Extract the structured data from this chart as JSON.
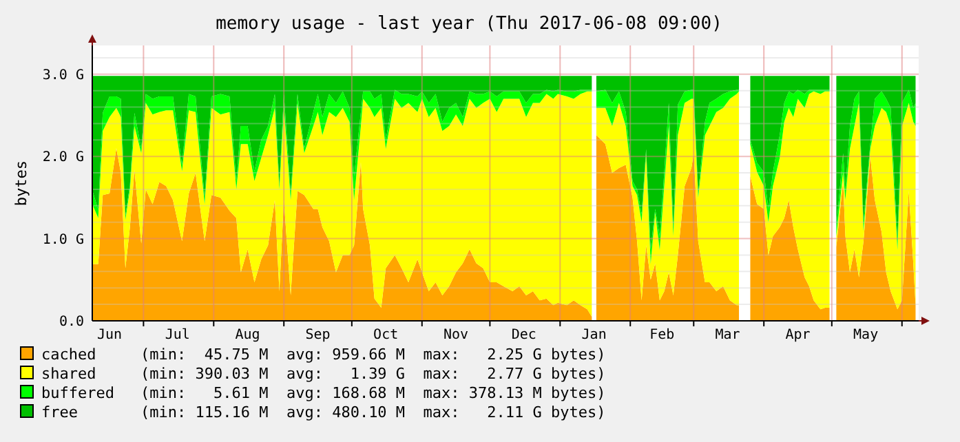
{
  "chart_data": {
    "type": "area",
    "stacked": true,
    "title": "memory usage - last year (Thu 2017-06-08 09:00)",
    "ylabel": "bytes",
    "x": [
      "2016-06-08T09:00",
      "2016-06-11",
      "2016-06-13",
      "2016-06-16",
      "2016-06-19",
      "2016-06-21",
      "2016-06-23",
      "2016-06-25",
      "2016-06-27",
      "2016-06-30",
      "2016-07-02",
      "2016-07-05",
      "2016-07-08",
      "2016-07-11",
      "2016-07-14",
      "2016-07-18",
      "2016-07-21",
      "2016-07-24",
      "2016-07-28",
      "2016-07-31",
      "2016-08-04",
      "2016-08-08",
      "2016-08-11",
      "2016-08-13",
      "2016-08-16",
      "2016-08-19",
      "2016-08-22",
      "2016-08-25",
      "2016-08-28",
      "2016-08-30",
      "2016-09-01",
      "2016-09-04",
      "2016-09-07",
      "2016-09-10",
      "2016-09-14",
      "2016-09-16",
      "2016-09-18",
      "2016-09-21",
      "2016-09-24",
      "2016-09-27",
      "2016-09-30",
      "2016-10-02",
      "2016-10-05",
      "2016-10-06",
      "2016-10-09",
      "2016-10-11",
      "2016-10-14",
      "2016-10-16",
      "2016-10-20",
      "2016-10-23",
      "2016-10-26",
      "2016-10-30",
      "2016-11-01",
      "2016-11-04",
      "2016-11-07",
      "2016-11-10",
      "2016-11-13",
      "2016-11-16",
      "2016-11-19",
      "2016-11-22",
      "2016-11-25",
      "2016-11-28",
      "2016-12-01",
      "2016-12-04",
      "2016-12-07",
      "2016-12-11",
      "2016-12-14",
      "2016-12-17",
      "2016-12-20",
      "2016-12-23",
      "2016-12-26",
      "2016-12-29",
      "2016-12-31",
      "2017-01-04",
      "2017-01-07",
      "2017-01-10",
      "2017-01-13",
      "2017-01-15",
      "2017-01-16",
      "2017-01-17",
      "2017-01-21",
      "2017-01-24",
      "2017-01-27",
      "2017-01-30",
      "2017-02-02",
      "2017-02-04",
      "2017-02-06",
      "2017-02-08",
      "2017-02-10",
      "2017-02-12",
      "2017-02-14",
      "2017-02-16",
      "2017-02-18",
      "2017-02-20",
      "2017-02-22",
      "2017-02-25",
      "2017-02-28",
      "2017-03-01",
      "2017-03-03",
      "2017-03-06",
      "2017-03-08",
      "2017-03-11",
      "2017-03-14",
      "2017-03-17",
      "2017-03-20",
      "2017-03-21",
      "2017-03-22",
      "2017-03-26",
      "2017-03-29",
      "2017-04-01",
      "2017-04-03",
      "2017-04-05",
      "2017-04-08",
      "2017-04-10",
      "2017-04-12",
      "2017-04-14",
      "2017-04-16",
      "2017-04-19",
      "2017-04-21",
      "2017-04-23",
      "2017-04-26",
      "2017-04-28",
      "2017-04-30",
      "2017-05-01",
      "2017-05-03",
      "2017-05-06",
      "2017-05-07",
      "2017-05-09",
      "2017-05-11",
      "2017-05-13",
      "2017-05-15",
      "2017-05-18",
      "2017-05-20",
      "2017-05-23",
      "2017-05-25",
      "2017-05-27",
      "2017-05-30",
      "2017-06-01",
      "2017-06-04",
      "2017-06-06",
      "2017-06-07"
    ],
    "series": [
      {
        "name": "cached",
        "color": "#ffa500",
        "values": [
          0.69,
          0.69,
          1.53,
          1.55,
          2.1,
          1.8,
          0.64,
          1.14,
          1.84,
          0.94,
          1.6,
          1.42,
          1.69,
          1.64,
          1.47,
          0.97,
          1.55,
          1.8,
          0.97,
          1.53,
          1.5,
          1.34,
          1.25,
          0.59,
          0.87,
          0.47,
          0.75,
          0.92,
          1.47,
          0.36,
          1.47,
          0.31,
          1.58,
          1.53,
          1.36,
          1.36,
          1.14,
          0.97,
          0.59,
          0.8,
          0.8,
          0.92,
          1.93,
          1.36,
          0.92,
          0.27,
          0.16,
          0.64,
          0.8,
          0.64,
          0.47,
          0.75,
          0.59,
          0.36,
          0.47,
          0.31,
          0.42,
          0.59,
          0.7,
          0.87,
          0.7,
          0.64,
          0.47,
          0.47,
          0.42,
          0.36,
          0.42,
          0.31,
          0.36,
          0.25,
          0.27,
          0.19,
          0.22,
          0.19,
          0.25,
          0.19,
          0.14,
          0.05,
          null,
          2.26,
          2.15,
          1.8,
          1.86,
          1.9,
          1.5,
          0.97,
          0.25,
          0.92,
          0.5,
          0.7,
          0.25,
          0.36,
          0.59,
          0.31,
          0.8,
          1.64,
          1.86,
          2.04,
          0.97,
          0.47,
          0.47,
          0.36,
          0.42,
          0.25,
          0.19,
          0.19,
          null,
          1.76,
          1.42,
          1.36,
          0.8,
          1.03,
          1.14,
          1.25,
          1.47,
          1.14,
          0.87,
          0.53,
          0.42,
          0.25,
          0.14,
          0.16,
          0.16,
          null,
          0.9,
          1.7,
          1.03,
          0.59,
          0.87,
          0.53,
          0.97,
          2.0,
          1.47,
          1.08,
          0.59,
          0.36,
          0.14,
          0.25,
          1.58,
          0.7,
          0.19
        ]
      },
      {
        "name": "shared",
        "color": "#ffff00",
        "values": [
          0.73,
          0.56,
          0.78,
          0.93,
          0.49,
          0.68,
          0.59,
          0.46,
          0.53,
          1.1,
          1.05,
          1.09,
          0.85,
          0.92,
          1.09,
          0.85,
          1.01,
          0.74,
          0.45,
          1.06,
          1.01,
          1.2,
          0.35,
          1.56,
          1.28,
          1.23,
          1.23,
          1.34,
          1.12,
          1.24,
          1.12,
          1.16,
          1.07,
          0.51,
          1.01,
          1.18,
          1.12,
          1.57,
          1.89,
          1.79,
          1.62,
          0.55,
          0.44,
          1.34,
          1.67,
          2.21,
          2.43,
          1.45,
          1.9,
          1.95,
          2.18,
          1.79,
          2.11,
          2.12,
          2.12,
          2.0,
          1.95,
          1.92,
          1.67,
          1.83,
          1.89,
          2.01,
          2.23,
          2.07,
          2.28,
          2.34,
          2.28,
          2.17,
          2.29,
          2.4,
          2.49,
          2.51,
          2.54,
          2.54,
          2.45,
          2.57,
          2.65,
          2.74,
          null,
          0.33,
          0.44,
          0.57,
          0.79,
          0.47,
          0.14,
          0.56,
          0.95,
          1.11,
          0.19,
          0.61,
          0.61,
          1.28,
          1.78,
          0.72,
          1.46,
          1.01,
          0.84,
          0.66,
          0.53,
          1.79,
          1.9,
          2.18,
          2.17,
          2.45,
          2.57,
          2.6,
          null,
          0.39,
          0.39,
          0.28,
          0.4,
          0.61,
          0.84,
          1.17,
          1.12,
          1.34,
          1.83,
          2.06,
          2.34,
          2.54,
          2.62,
          2.63,
          2.63,
          null,
          0.13,
          0.11,
          0.44,
          1.5,
          1.5,
          2.12,
          0.12,
          0.09,
          0.9,
          1.51,
          1.95,
          2.01,
          0.72,
          2.12,
          1.07,
          1.72,
          2.18
        ]
      },
      {
        "name": "buffered",
        "color": "#00ff00",
        "values": [
          0.17,
          0.1,
          0.22,
          0.25,
          0.14,
          0.22,
          0.05,
          0.05,
          0.16,
          0.06,
          0.11,
          0.19,
          0.19,
          0.17,
          0.17,
          0.08,
          0.2,
          0.19,
          0.08,
          0.14,
          0.25,
          0.19,
          0.1,
          0.22,
          0.22,
          0.12,
          0.22,
          0.11,
          0.17,
          0.05,
          0.17,
          0.08,
          0.11,
          0.06,
          0.17,
          0.22,
          0.22,
          0.22,
          0.17,
          0.2,
          0.17,
          0.29,
          0.17,
          0.09,
          0.2,
          0.22,
          0.17,
          0.11,
          0.11,
          0.17,
          0.11,
          0.19,
          0.09,
          0.17,
          0.17,
          0.11,
          0.22,
          0.14,
          0.11,
          0.09,
          0.17,
          0.11,
          0.09,
          0.19,
          0.09,
          0.09,
          0.09,
          0.17,
          0.11,
          0.11,
          0.05,
          0.09,
          0.05,
          0.06,
          0.09,
          0.05,
          0.02,
          0.02,
          null,
          0.2,
          0.22,
          0.28,
          0.14,
          0.17,
          0.06,
          0.07,
          0.1,
          0.06,
          0.18,
          0.05,
          0.17,
          0.17,
          0.28,
          0.11,
          0.37,
          0.14,
          0.11,
          0.11,
          0.05,
          0.16,
          0.28,
          0.16,
          0.17,
          0.09,
          0.05,
          0.02,
          null,
          0.05,
          0.11,
          0.17,
          0.16,
          0.17,
          0.28,
          0.23,
          0.2,
          0.28,
          0.11,
          0.17,
          0.05,
          0.02,
          0.05,
          0.02,
          0.02,
          null,
          0.11,
          0.23,
          0.12,
          0.28,
          0.33,
          0.14,
          0.11,
          0.06,
          0.33,
          0.2,
          0.16,
          0.22,
          0.11,
          0.28,
          0.16,
          0.17,
          0.28
        ]
      },
      {
        "name": "free",
        "color": "#00c000",
        "values": [
          1.39,
          1.63,
          0.45,
          0.25,
          0.25,
          0.28,
          1.7,
          1.33,
          0.45,
          0.88,
          0.22,
          0.28,
          0.25,
          0.25,
          0.25,
          1.08,
          0.22,
          0.25,
          1.48,
          0.25,
          0.22,
          0.25,
          1.28,
          0.61,
          0.61,
          1.16,
          0.78,
          0.61,
          0.22,
          1.33,
          0.22,
          1.43,
          0.22,
          0.88,
          0.44,
          0.22,
          0.5,
          0.22,
          0.33,
          0.19,
          0.39,
          1.22,
          0.44,
          0.19,
          0.19,
          0.28,
          0.22,
          0.78,
          0.17,
          0.22,
          0.22,
          0.25,
          0.19,
          0.33,
          0.22,
          0.56,
          0.39,
          0.33,
          0.5,
          0.19,
          0.22,
          0.22,
          0.19,
          0.25,
          0.19,
          0.19,
          0.19,
          0.33,
          0.22,
          0.22,
          0.17,
          0.19,
          0.17,
          0.19,
          0.19,
          0.17,
          0.17,
          0.17,
          null,
          0.19,
          0.17,
          0.33,
          0.19,
          0.44,
          1.28,
          1.38,
          1.68,
          0.89,
          2.11,
          1.62,
          1.95,
          1.17,
          0.33,
          1.84,
          0.35,
          0.19,
          0.17,
          0.17,
          1.43,
          0.56,
          0.33,
          0.28,
          0.22,
          0.19,
          0.17,
          0.17,
          null,
          0.78,
          1.06,
          1.17,
          1.62,
          1.17,
          0.72,
          0.33,
          0.19,
          0.22,
          0.17,
          0.22,
          0.17,
          0.17,
          0.17,
          0.17,
          0.17,
          null,
          1.84,
          0.94,
          1.39,
          0.61,
          0.28,
          0.19,
          1.78,
          0.83,
          0.28,
          0.19,
          0.28,
          0.39,
          2.01,
          0.33,
          0.17,
          0.39,
          0.33
        ]
      }
    ],
    "xlim": [
      "2016-06-08T09:00",
      "2017-06-08T09:00"
    ],
    "xticks": [
      {
        "value": "2016-07-01",
        "label": null
      },
      {
        "value": "2016-08-01",
        "label": null
      },
      {
        "value": "2016-09-01",
        "label": null
      },
      {
        "value": "2016-10-01",
        "label": null
      },
      {
        "value": "2016-11-01",
        "label": null
      },
      {
        "value": "2016-12-01",
        "label": null
      },
      {
        "value": "2017-01-01",
        "label": null
      },
      {
        "value": "2017-02-01",
        "label": null
      },
      {
        "value": "2017-03-01",
        "label": null
      },
      {
        "value": "2017-04-01",
        "label": null
      },
      {
        "value": "2017-05-01",
        "label": null
      },
      {
        "value": "2017-06-01",
        "label": null
      },
      {
        "value": "2016-06-16",
        "label": "Jun"
      },
      {
        "value": "2016-07-16",
        "label": "Jul"
      },
      {
        "value": "2016-08-16",
        "label": "Aug"
      },
      {
        "value": "2016-09-16",
        "label": "Sep"
      },
      {
        "value": "2016-10-16",
        "label": "Oct"
      },
      {
        "value": "2016-11-16",
        "label": "Nov"
      },
      {
        "value": "2016-12-16",
        "label": "Dec"
      },
      {
        "value": "2017-01-16",
        "label": "Jan"
      },
      {
        "value": "2017-02-15",
        "label": "Feb"
      },
      {
        "value": "2017-03-16",
        "label": "Mar"
      },
      {
        "value": "2017-04-16",
        "label": "Apr"
      },
      {
        "value": "2017-05-16",
        "label": "May"
      }
    ],
    "ylim": [
      0,
      3.35
    ],
    "yticks": [
      {
        "value": 0,
        "label": "0.0"
      },
      {
        "value": 0.2,
        "label": null
      },
      {
        "value": 0.4,
        "label": null
      },
      {
        "value": 0.6,
        "label": null
      },
      {
        "value": 0.8,
        "label": null
      },
      {
        "value": 1,
        "label": "1.0 G"
      },
      {
        "value": 1.2,
        "label": null
      },
      {
        "value": 1.4,
        "label": null
      },
      {
        "value": 1.6,
        "label": null
      },
      {
        "value": 1.8,
        "label": null
      },
      {
        "value": 2,
        "label": "2.0 G"
      },
      {
        "value": 2.2,
        "label": null
      },
      {
        "value": 2.4,
        "label": null
      },
      {
        "value": 2.6,
        "label": null
      },
      {
        "value": 2.8,
        "label": null
      },
      {
        "value": 3,
        "label": "3.0 G"
      },
      {
        "value": 3.2,
        "label": null
      }
    ],
    "grid": true,
    "legend": "bottom",
    "annotations": [
      "(min:  45.75 M  avg: 959.66 M  max:   2.25 G bytes)",
      "(min: 390.03 M  avg:   1.39 G  max:   2.77 G bytes)",
      "(min:   5.61 M  avg: 168.68 M  max: 378.13 M bytes)",
      "(min: 115.16 M  avg: 480.10 M  max:   2.11 G bytes)"
    ]
  }
}
